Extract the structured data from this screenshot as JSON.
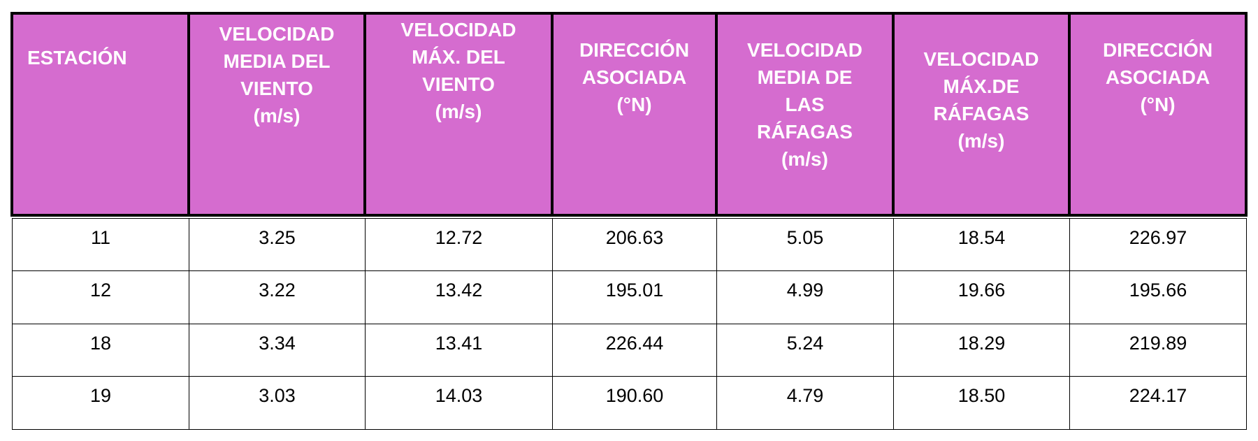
{
  "table": {
    "header": [
      [
        "ESTACIÓN"
      ],
      [
        "VELOCIDAD",
        "MEDIA DEL",
        "VIENTO",
        "(m/s)"
      ],
      [
        "VELOCIDAD",
        "MÁX. DEL",
        "VIENTO",
        "(m/s)"
      ],
      [
        "DIRECCIÓN",
        "ASOCIADA",
        "(°N)"
      ],
      [
        "VELOCIDAD",
        "MEDIA DE",
        "LAS",
        "RÁFAGAS",
        "(m/s)"
      ],
      [
        "VELOCIDAD",
        "MÁX.DE",
        "RÁFAGAS",
        "(m/s)"
      ],
      [
        "DIRECCIÓN",
        "ASOCIADA",
        "(°N)"
      ]
    ],
    "rows": [
      [
        "11",
        "3.25",
        "12.72",
        "206.63",
        "5.05",
        "18.54",
        "226.97"
      ],
      [
        "12",
        "3.22",
        "13.42",
        "195.01",
        "4.99",
        "19.66",
        "195.66"
      ],
      [
        "18",
        "3.34",
        "13.41",
        "226.44",
        "5.24",
        "18.29",
        "219.89"
      ],
      [
        "19",
        "3.03",
        "14.03",
        "190.60",
        "4.79",
        "18.50",
        "224.17"
      ]
    ]
  }
}
